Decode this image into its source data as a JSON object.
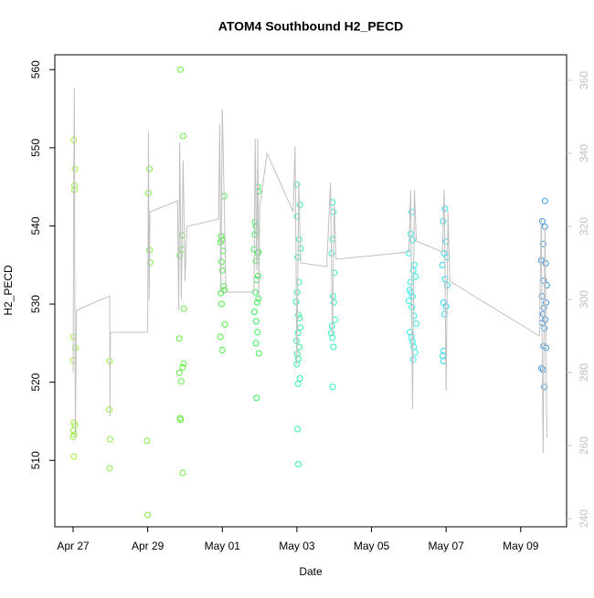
{
  "chart_data": {
    "type": "scatter",
    "title": "ATOM4 Southbound H2_PECD",
    "x_label": "Date",
    "y_label": "H2_PECD",
    "xlim": [
      -0.49,
      13.23
    ],
    "xticks": [
      {
        "value": 0,
        "label": "Apr 27"
      },
      {
        "value": 2,
        "label": "Apr 29"
      },
      {
        "value": 4,
        "label": "May 01"
      },
      {
        "value": 6,
        "label": "May 03"
      },
      {
        "value": 8,
        "label": "May 05"
      },
      {
        "value": 10,
        "label": "May 07"
      },
      {
        "value": 12,
        "label": "May 09"
      }
    ],
    "ylim": [
      501.5,
      561.9
    ],
    "yticks": [
      510,
      520,
      530,
      540,
      550,
      560
    ],
    "y2lim": [
      237.75,
      367
    ],
    "y2ticks": [
      240,
      260,
      280,
      300,
      320,
      340,
      360
    ],
    "series": [
      {
        "color": "#9cf040",
        "x": [
          0.02,
          0.05,
          0.04,
          0.03,
          0.01,
          0.06,
          0.0,
          0.02,
          0.05,
          0.01,
          0.03,
          0.0,
          0.02
        ],
        "values": [
          551,
          547.3,
          545.2,
          544.6,
          525.8,
          524.4,
          522.8,
          514.8,
          514.5,
          513.8,
          513.3,
          513,
          510.5
        ]
      },
      {
        "color": "#8cf040",
        "x": [
          0.98,
          0.97,
          0.99,
          0.98
        ],
        "values": [
          522.7,
          516.5,
          512.7,
          509
        ]
      },
      {
        "color": "#7cf040",
        "x": [
          2.05,
          2.02,
          2.05,
          2.07,
          1.98,
          2.0
        ],
        "values": [
          547.3,
          544.2,
          536.9,
          535.3,
          512.5,
          503
        ]
      },
      {
        "color": "#64f040",
        "x": [
          2.88,
          2.95,
          2.92,
          2.92,
          2.86,
          2.97,
          2.85,
          2.96,
          2.94,
          2.85,
          2.9,
          2.87,
          2.88,
          2.94
        ],
        "values": [
          560,
          551.5,
          538.8,
          537,
          536.2,
          529.4,
          525.6,
          522.4,
          521.9,
          521.2,
          520.1,
          515.4,
          515.2,
          508.4
        ]
      },
      {
        "color": "#48f040",
        "x": [
          4.05,
          3.97,
          3.99,
          3.95,
          4.02,
          3.98,
          4.0,
          4.04,
          4.06,
          3.96,
          3.98,
          4.07,
          3.95,
          4.0
        ],
        "values": [
          543.8,
          538.7,
          538.2,
          537.9,
          536.8,
          535.4,
          534.3,
          532.3,
          531.8,
          531.4,
          530,
          527.4,
          525.8,
          524.1
        ]
      },
      {
        "color": "#38f058",
        "x": [
          4.95,
          4.96,
          4.88,
          4.9,
          4.93,
          4.87,
          4.85,
          4.97,
          4.95,
          4.9,
          4.96,
          4.92,
          4.88,
          4.97,
          4.93,
          4.86,
          4.91,
          4.94,
          4.9,
          4.98,
          4.92
        ],
        "values": [
          545,
          544.4,
          540.5,
          540,
          539.4,
          538.9,
          537,
          536.7,
          536.5,
          535.5,
          533.6,
          533.1,
          531.5,
          530.7,
          530.2,
          529,
          527.8,
          526.4,
          525,
          523.7,
          518
        ]
      },
      {
        "color": "#34f0a0",
        "x": [
          6.0,
          6.08,
          6.0,
          6.06,
          6.1,
          6.02,
          6.05,
          6.01,
          5.98,
          6.04,
          6.07,
          6.09,
          6.03,
          5.99,
          6.06,
          6.01,
          6.04,
          6.0,
          6.08,
          6.03,
          6.02,
          6.04
        ],
        "values": [
          545.3,
          542.7,
          541.2,
          538.3,
          537.1,
          536,
          532.8,
          531.5,
          530.3,
          528.6,
          528.2,
          527,
          526.3,
          525.3,
          524.5,
          523.6,
          523,
          522.3,
          520.5,
          519.8,
          514,
          509.5
        ]
      },
      {
        "color": "#30f0c4",
        "x": [
          6.95,
          6.98,
          6.96,
          6.93,
          7.0,
          6.97,
          6.99,
          7.02,
          6.94,
          6.92,
          6.95,
          6.98,
          6.96
        ],
        "values": [
          543,
          541.8,
          538.3,
          536.5,
          534,
          531,
          530.2,
          528,
          527.2,
          526.3,
          525.7,
          524.5,
          519.4
        ]
      },
      {
        "color": "#30eef0",
        "x": [
          9.08,
          9.05,
          9.1,
          9.0,
          9.15,
          9.12,
          9.18,
          9.05,
          9.02,
          9.06,
          9.1,
          9.0,
          9.08,
          9.14,
          9.2,
          9.03,
          9.07,
          9.1,
          9.13,
          9.17,
          9.12
        ],
        "values": [
          541.8,
          539,
          538.2,
          536.5,
          535,
          534.3,
          533.5,
          532.8,
          531.8,
          531.5,
          531,
          530.4,
          529.6,
          528.5,
          527.5,
          526.4,
          525.8,
          525.2,
          524.5,
          523.8,
          522.9
        ]
      },
      {
        "color": "#30d8f0",
        "x": [
          9.97,
          9.92,
          10.0,
          9.95,
          10.02,
          9.9,
          9.97,
          10.03,
          9.93,
          10.0,
          9.96,
          9.94,
          9.91,
          9.93
        ],
        "values": [
          542.2,
          540.6,
          538,
          536.5,
          536,
          535,
          533.2,
          532.4,
          530.2,
          529.7,
          528.7,
          524,
          523.4,
          522.7
        ]
      },
      {
        "color": "#3a98e4",
        "x": [
          12.65,
          12.58,
          12.65,
          12.6,
          12.55,
          12.67,
          12.62,
          12.7,
          12.57,
          12.68,
          12.62,
          12.6,
          12.66,
          12.58,
          12.63,
          12.61,
          12.68,
          12.56,
          12.6,
          12.63
        ],
        "values": [
          543.2,
          540.6,
          539.9,
          537.7,
          535.6,
          535.2,
          533,
          532.4,
          531,
          530.2,
          529.5,
          528.7,
          528,
          527.6,
          526.9,
          524.6,
          524.4,
          521.8,
          521.6,
          519.4
        ]
      },
      {
        "axis": "y2",
        "color": "#c0c0c0",
        "x": [
          0,
          0.03,
          0.06,
          0.09,
          0.98,
          0.99,
          1.0,
          2.0,
          2.02,
          2.04,
          2.06,
          2.8,
          2.83,
          2.86,
          2.9,
          2.95,
          3.0,
          3.05,
          3.9,
          3.93,
          3.96,
          4.0,
          4.1,
          4.85,
          4.88,
          4.92,
          4.95,
          4.98,
          5.0,
          5.2,
          5.9,
          5.95,
          6.0,
          6.05,
          6.1,
          6.8,
          6.9,
          6.95,
          7.0,
          7.05,
          9.0,
          9.05,
          9.1,
          9.15,
          9.2,
          9.9,
          9.95,
          10.0,
          10.05,
          10.1,
          12.5,
          12.55,
          12.6,
          12.65,
          12.7
        ],
        "values": [
          280,
          358,
          262,
          297,
          301,
          268,
          291,
          291,
          346,
          300,
          324,
          327,
          297,
          343,
          300,
          338,
          305,
          320,
          322,
          348,
          302,
          352,
          302,
          302,
          344,
          308,
          344,
          300,
          325,
          340,
          324,
          342,
          282,
          332,
          310,
          309,
          332,
          290,
          326,
          311,
          313,
          330,
          270,
          330,
          316,
          313,
          330,
          275,
          324,
          305,
          290,
          322,
          258,
          320,
          262
        ]
      }
    ]
  }
}
